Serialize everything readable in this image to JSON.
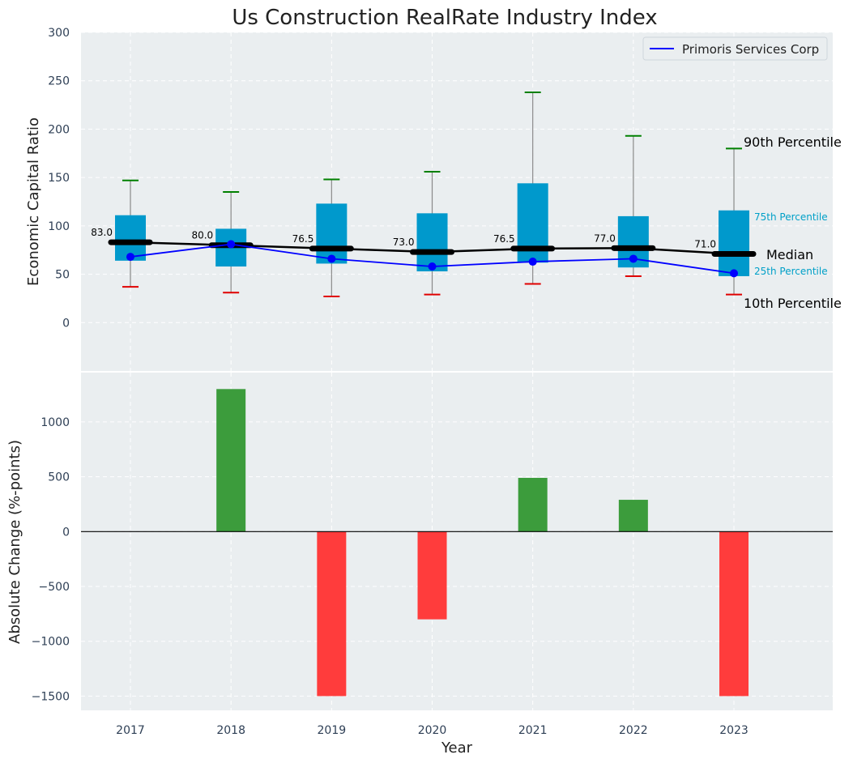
{
  "colors": {
    "panel_bg": "#eaeef0",
    "box_fill": "#0099cc",
    "whisker_line": "#8a8a8a",
    "p90_cap": "#008000",
    "p10_cap": "#e00000",
    "median_line": "#000000",
    "company_line": "#0000ff",
    "pos_bar": "#3c9c3c",
    "neg_bar": "#ff3c3c",
    "annot_small": "#00a0c8"
  },
  "chart_data": [
    {
      "type": "box",
      "title": "Us Construction RealRate Industry Index",
      "xlabel": "",
      "ylabel": "Economic Capital Ratio",
      "ylim": [
        -50,
        300
      ],
      "yticks": [
        0,
        50,
        100,
        150,
        200,
        250,
        300
      ],
      "categories": [
        "2017",
        "2018",
        "2019",
        "2020",
        "2021",
        "2022",
        "2023"
      ],
      "p10": [
        37,
        31,
        27,
        29,
        40,
        48,
        29
      ],
      "p25": [
        64,
        58,
        61,
        53,
        62,
        57,
        48
      ],
      "median": [
        83.0,
        80.0,
        76.5,
        73.0,
        76.5,
        77.0,
        71.0
      ],
      "median_labels": [
        "83.0",
        "80.0",
        "76.5",
        "73.0",
        "76.5",
        "77.0",
        "71.0"
      ],
      "p75": [
        111,
        97,
        123,
        113,
        144,
        110,
        116
      ],
      "p90": [
        147,
        135,
        148,
        156,
        238,
        193,
        180
      ],
      "series": [
        {
          "name": "Primoris Services Corp",
          "values": [
            68,
            81,
            66,
            58,
            63,
            66,
            51
          ]
        }
      ],
      "legend": {
        "position": "top-right"
      },
      "annotations": {
        "p90": "90th Percentile",
        "p75": "75th Percentile",
        "median": "Median",
        "p25": "25th Percentile",
        "p10": "10th Percentile"
      },
      "grid": true
    },
    {
      "type": "bar",
      "xlabel": "Year",
      "ylabel": "Absolute Change (%-points)",
      "ylim": [
        -1630,
        1450
      ],
      "yticks": [
        -1500,
        -1000,
        -500,
        0,
        500,
        1000
      ],
      "ytick_labels": [
        "−1500",
        "−1000",
        "−500",
        "0",
        "500",
        "1000"
      ],
      "categories": [
        "2017",
        "2018",
        "2019",
        "2020",
        "2021",
        "2022",
        "2023"
      ],
      "values": [
        0,
        1300,
        -1500,
        -800,
        490,
        290,
        -1500
      ],
      "grid": true
    }
  ]
}
